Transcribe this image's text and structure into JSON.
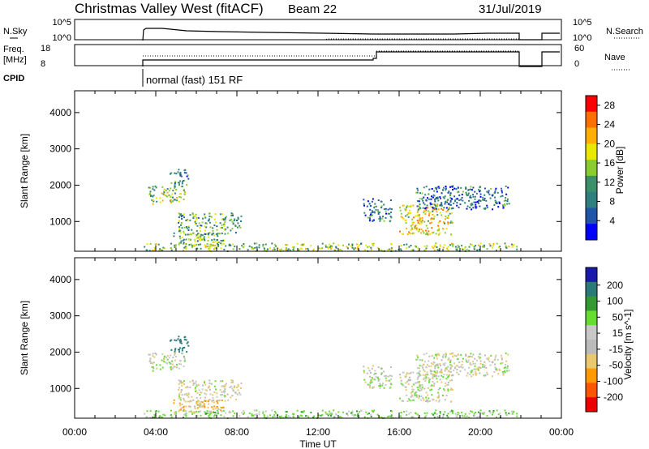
{
  "header": {
    "title": "Christmas Valley West (fitACF)",
    "beam": "Beam 22",
    "date": "31/Jul/2019"
  },
  "time_axis": {
    "label": "Time UT",
    "ticks": [
      "00:00",
      "04:00",
      "08:00",
      "12:00",
      "16:00",
      "20:00",
      "00:00"
    ],
    "tick_hours": [
      0,
      4,
      8,
      12,
      16,
      20,
      24
    ]
  },
  "top_panels": {
    "nsky": {
      "label": "N.Sky",
      "ticks": [
        "10^5",
        "10^0"
      ],
      "right_label": "N.Search",
      "right_ticks": [
        "10^5",
        "10^0"
      ]
    },
    "freq": {
      "label_line1": "Freq.",
      "label_line2": "[MHz]",
      "ticks": [
        "18",
        "8"
      ],
      "right_label": "Nave",
      "right_ticks": [
        "60",
        "0"
      ]
    },
    "cpid": {
      "label": "CPID",
      "program": "normal (fast) 151 RF"
    }
  },
  "colors": {
    "power_scale": [
      "#0000ff",
      "#2255aa",
      "#2f7f7f",
      "#3d8f6a",
      "#8ccc33",
      "#e8e800",
      "#ffb000",
      "#ff7000",
      "#ff0000"
    ],
    "velocity_scale": [
      "#ee0000",
      "#ff5500",
      "#ff9a00",
      "#e8c870",
      "#bbbbbb",
      "#c8c8c8",
      "#66dd33",
      "#339933",
      "#2a7a7a",
      "#1a1aaa"
    ]
  },
  "chart_data": [
    {
      "type": "heatmap",
      "quantity": "Power",
      "ylabel": "Slant Range [km]",
      "xlabel": "Time UT",
      "y_ticks": [
        1000,
        2000,
        3000,
        4000
      ],
      "ylim": [
        180,
        4600
      ],
      "xlim_hours": [
        0,
        24
      ],
      "colorbar": {
        "label": "Power [dB]",
        "ticks": [
          "4",
          "8",
          "12",
          "16",
          "20",
          "24",
          "28"
        ],
        "range": [
          0,
          30
        ]
      },
      "regions": [
        {
          "t0": 3.4,
          "t1": 21.8,
          "r0": 200,
          "r1": 420,
          "level": 15
        },
        {
          "t0": 3.6,
          "t1": 5.4,
          "r0": 1500,
          "r1": 2000,
          "level": 14
        },
        {
          "t0": 4.6,
          "t1": 5.6,
          "r0": 2000,
          "r1": 2450,
          "level": 9
        },
        {
          "t0": 5.0,
          "t1": 8.2,
          "r0": 650,
          "r1": 1250,
          "level": 12
        },
        {
          "t0": 4.8,
          "t1": 7.4,
          "r0": 350,
          "r1": 700,
          "level": 13
        },
        {
          "t0": 14.2,
          "t1": 15.6,
          "r0": 1000,
          "r1": 1650,
          "level": 8
        },
        {
          "t0": 16.0,
          "t1": 18.6,
          "r0": 650,
          "r1": 1500,
          "level": 19
        },
        {
          "t0": 16.8,
          "t1": 21.4,
          "r0": 1350,
          "r1": 2000,
          "level": 7
        }
      ]
    },
    {
      "type": "heatmap",
      "quantity": "Velocity",
      "ylabel": "Slant Range [km]",
      "xlabel": "Time UT",
      "y_ticks": [
        1000,
        2000,
        3000,
        4000
      ],
      "ylim": [
        180,
        4600
      ],
      "xlim_hours": [
        0,
        24
      ],
      "colorbar": {
        "label": "Velocity [m s^-1]",
        "ticks": [
          "200",
          "100",
          "50",
          "15",
          "-15",
          "-50",
          "-100",
          "-200"
        ],
        "range": [
          -250,
          250
        ]
      },
      "regions": [
        {
          "t0": 3.4,
          "t1": 21.8,
          "r0": 200,
          "r1": 420,
          "level": 30
        },
        {
          "t0": 3.6,
          "t1": 5.4,
          "r0": 1500,
          "r1": 2000,
          "level": 0
        },
        {
          "t0": 4.6,
          "t1": 5.6,
          "r0": 2000,
          "r1": 2450,
          "level": 150
        },
        {
          "t0": 5.0,
          "t1": 8.2,
          "r0": 650,
          "r1": 1250,
          "level": -10
        },
        {
          "t0": 4.8,
          "t1": 7.4,
          "r0": 350,
          "r1": 700,
          "level": -40
        },
        {
          "t0": 14.2,
          "t1": 15.6,
          "r0": 1000,
          "r1": 1650,
          "level": 5
        },
        {
          "t0": 16.0,
          "t1": 18.6,
          "r0": 650,
          "r1": 1500,
          "level": 0
        },
        {
          "t0": 16.8,
          "t1": 21.4,
          "r0": 1350,
          "r1": 2000,
          "level": -5
        }
      ]
    }
  ]
}
